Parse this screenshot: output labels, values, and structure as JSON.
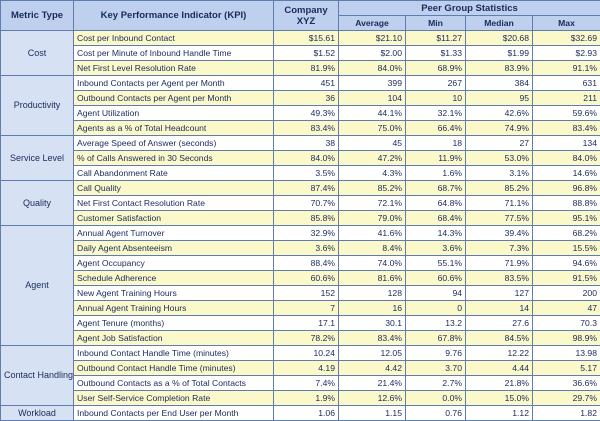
{
  "headers": {
    "metric_type": "Metric Type",
    "kpi": "Key Performance Indicator (KPI)",
    "company": "Company XYZ",
    "peer_group": "Peer Group Statistics",
    "average": "Average",
    "min": "Min",
    "median": "Median",
    "max": "Max"
  },
  "groups": [
    {
      "category": "Cost",
      "rows": [
        {
          "kpi": "Cost per Inbound Contact",
          "company": "$15.61",
          "average": "$21.10",
          "min": "$11.27",
          "median": "$20.68",
          "max": "$32.69"
        },
        {
          "kpi": "Cost per Minute of Inbound Handle Time",
          "company": "$1.52",
          "average": "$2.00",
          "min": "$1.33",
          "median": "$1.99",
          "max": "$2.93"
        },
        {
          "kpi": "Net First Level Resolution Rate",
          "company": "81.9%",
          "average": "84.0%",
          "min": "68.9%",
          "median": "83.9%",
          "max": "91.1%"
        }
      ]
    },
    {
      "category": "Productivity",
      "rows": [
        {
          "kpi": "Inbound Contacts per Agent per Month",
          "company": "451",
          "average": "399",
          "min": "267",
          "median": "384",
          "max": "631"
        },
        {
          "kpi": "Outbound Contacts per Agent per Month",
          "company": "36",
          "average": "104",
          "min": "10",
          "median": "95",
          "max": "211"
        },
        {
          "kpi": "Agent Utilization",
          "company": "49.3%",
          "average": "44.1%",
          "min": "32.1%",
          "median": "42.6%",
          "max": "59.6%"
        },
        {
          "kpi": "Agents as a % of Total Headcount",
          "company": "83.4%",
          "average": "75.0%",
          "min": "66.4%",
          "median": "74.9%",
          "max": "83.4%"
        }
      ]
    },
    {
      "category": "Service Level",
      "rows": [
        {
          "kpi": "Average Speed of Answer (seconds)",
          "company": "38",
          "average": "45",
          "min": "18",
          "median": "27",
          "max": "134"
        },
        {
          "kpi": "% of Calls Answered in 30 Seconds",
          "company": "84.0%",
          "average": "47.2%",
          "min": "11.9%",
          "median": "53.0%",
          "max": "84.0%"
        },
        {
          "kpi": "Call Abandonment Rate",
          "company": "3.5%",
          "average": "4.3%",
          "min": "1.6%",
          "median": "3.1%",
          "max": "14.6%"
        }
      ]
    },
    {
      "category": "Quality",
      "rows": [
        {
          "kpi": "Call Quality",
          "company": "87.4%",
          "average": "85.2%",
          "min": "68.7%",
          "median": "85.2%",
          "max": "96.8%"
        },
        {
          "kpi": "Net First Contact Resolution Rate",
          "company": "70.7%",
          "average": "72.1%",
          "min": "64.8%",
          "median": "71.1%",
          "max": "88.8%"
        },
        {
          "kpi": "Customer Satisfaction",
          "company": "85.8%",
          "average": "79.0%",
          "min": "68.4%",
          "median": "77.5%",
          "max": "95.1%"
        }
      ]
    },
    {
      "category": "Agent",
      "rows": [
        {
          "kpi": "Annual Agent Turnover",
          "company": "32.9%",
          "average": "41.6%",
          "min": "14.3%",
          "median": "39.4%",
          "max": "68.2%"
        },
        {
          "kpi": "Daily Agent Absenteeism",
          "company": "3.6%",
          "average": "8.4%",
          "min": "3.6%",
          "median": "7.3%",
          "max": "15.5%"
        },
        {
          "kpi": "Agent Occupancy",
          "company": "88.4%",
          "average": "74.0%",
          "min": "55.1%",
          "median": "71.9%",
          "max": "94.6%"
        },
        {
          "kpi": "Schedule Adherence",
          "company": "60.6%",
          "average": "81.6%",
          "min": "60.6%",
          "median": "83.5%",
          "max": "91.5%"
        },
        {
          "kpi": "New Agent Training Hours",
          "company": "152",
          "average": "128",
          "min": "94",
          "median": "127",
          "max": "200"
        },
        {
          "kpi": "Annual Agent Training Hours",
          "company": "7",
          "average": "16",
          "min": "0",
          "median": "14",
          "max": "47"
        },
        {
          "kpi": "Agent Tenure (months)",
          "company": "17.1",
          "average": "30.1",
          "min": "13.2",
          "median": "27.6",
          "max": "70.3"
        },
        {
          "kpi": "Agent Job Satisfaction",
          "company": "78.2%",
          "average": "83.4%",
          "min": "67.8%",
          "median": "84.5%",
          "max": "98.9%"
        }
      ]
    },
    {
      "category": "Contact Handling",
      "rows": [
        {
          "kpi": "Inbound Contact Handle Time (minutes)",
          "company": "10.24",
          "average": "12.05",
          "min": "9.76",
          "median": "12.22",
          "max": "13.98"
        },
        {
          "kpi": "Outbound Contact Handle Time (minutes)",
          "company": "4.19",
          "average": "4.42",
          "min": "3.70",
          "median": "4.44",
          "max": "5.17"
        },
        {
          "kpi": "Outbound Contacts as a % of Total Contacts",
          "company": "7.4%",
          "average": "21.4%",
          "min": "2.7%",
          "median": "21.8%",
          "max": "36.6%"
        },
        {
          "kpi": "User Self-Service Completion Rate",
          "company": "1.9%",
          "average": "12.6%",
          "min": "0.0%",
          "median": "15.0%",
          "max": "29.7%"
        }
      ]
    },
    {
      "category": "Workload",
      "rows": [
        {
          "kpi": "Inbound Contacts per End User per Month",
          "company": "1.06",
          "average": "1.15",
          "min": "0.76",
          "median": "1.12",
          "max": "1.82"
        }
      ]
    }
  ]
}
